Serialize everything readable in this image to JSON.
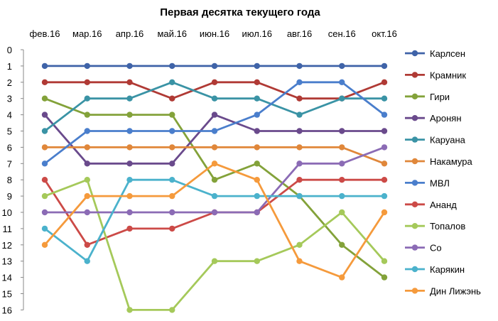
{
  "chart_data": {
    "type": "line",
    "title": "Первая десятка текущего года",
    "xlabel": "",
    "ylabel": "",
    "categories": [
      "фев.16",
      "мар.16",
      "апр.16",
      "май.16",
      "июн.16",
      "июл.16",
      "авг.16",
      "сен.16",
      "окт.16"
    ],
    "ylim": [
      0,
      16
    ],
    "y_reversed": true,
    "y_ticks": [
      0,
      1,
      2,
      3,
      4,
      5,
      6,
      7,
      8,
      9,
      10,
      11,
      12,
      13,
      14,
      15,
      16
    ],
    "x_axis_position": "top",
    "grid": false,
    "legend_position": "right",
    "series": [
      {
        "name": "Карлсен",
        "color": "#3F63A8",
        "values": [
          1,
          1,
          1,
          1,
          1,
          1,
          1,
          1,
          1
        ]
      },
      {
        "name": "Крамник",
        "color": "#B03A35",
        "values": [
          2,
          2,
          2,
          3,
          2,
          2,
          3,
          3,
          2
        ]
      },
      {
        "name": "Гири",
        "color": "#83A23A",
        "values": [
          3,
          4,
          4,
          4,
          8,
          7,
          9,
          12,
          14
        ]
      },
      {
        "name": "Аронян",
        "color": "#6A4A8C",
        "values": [
          4,
          7,
          7,
          7,
          4,
          5,
          5,
          5,
          5
        ]
      },
      {
        "name": "Каруана",
        "color": "#3A93A5",
        "values": [
          5,
          3,
          3,
          2,
          3,
          3,
          4,
          3,
          3
        ]
      },
      {
        "name": "Накамура",
        "color": "#E0873A",
        "values": [
          6,
          6,
          6,
          6,
          6,
          6,
          6,
          6,
          7
        ]
      },
      {
        "name": "МВЛ",
        "color": "#4A7ECC",
        "values": [
          7,
          5,
          5,
          5,
          5,
          4,
          2,
          2,
          4
        ]
      },
      {
        "name": "Ананд",
        "color": "#CC4A47",
        "values": [
          8,
          12,
          11,
          11,
          10,
          10,
          8,
          8,
          8
        ]
      },
      {
        "name": "Топалов",
        "color": "#A5C95A",
        "values": [
          9,
          8,
          16,
          16,
          13,
          13,
          12,
          10,
          13
        ]
      },
      {
        "name": "Со",
        "color": "#8B6BB5",
        "values": [
          10,
          10,
          10,
          10,
          10,
          10,
          7,
          7,
          6
        ]
      },
      {
        "name": "Карякин",
        "color": "#4BB2CC",
        "values": [
          11,
          13,
          8,
          8,
          9,
          9,
          9,
          9,
          9
        ]
      },
      {
        "name": "Дин Лижэнь",
        "color": "#F59A3C",
        "values": [
          12,
          9,
          9,
          9,
          7,
          8,
          13,
          14,
          10
        ]
      }
    ]
  }
}
